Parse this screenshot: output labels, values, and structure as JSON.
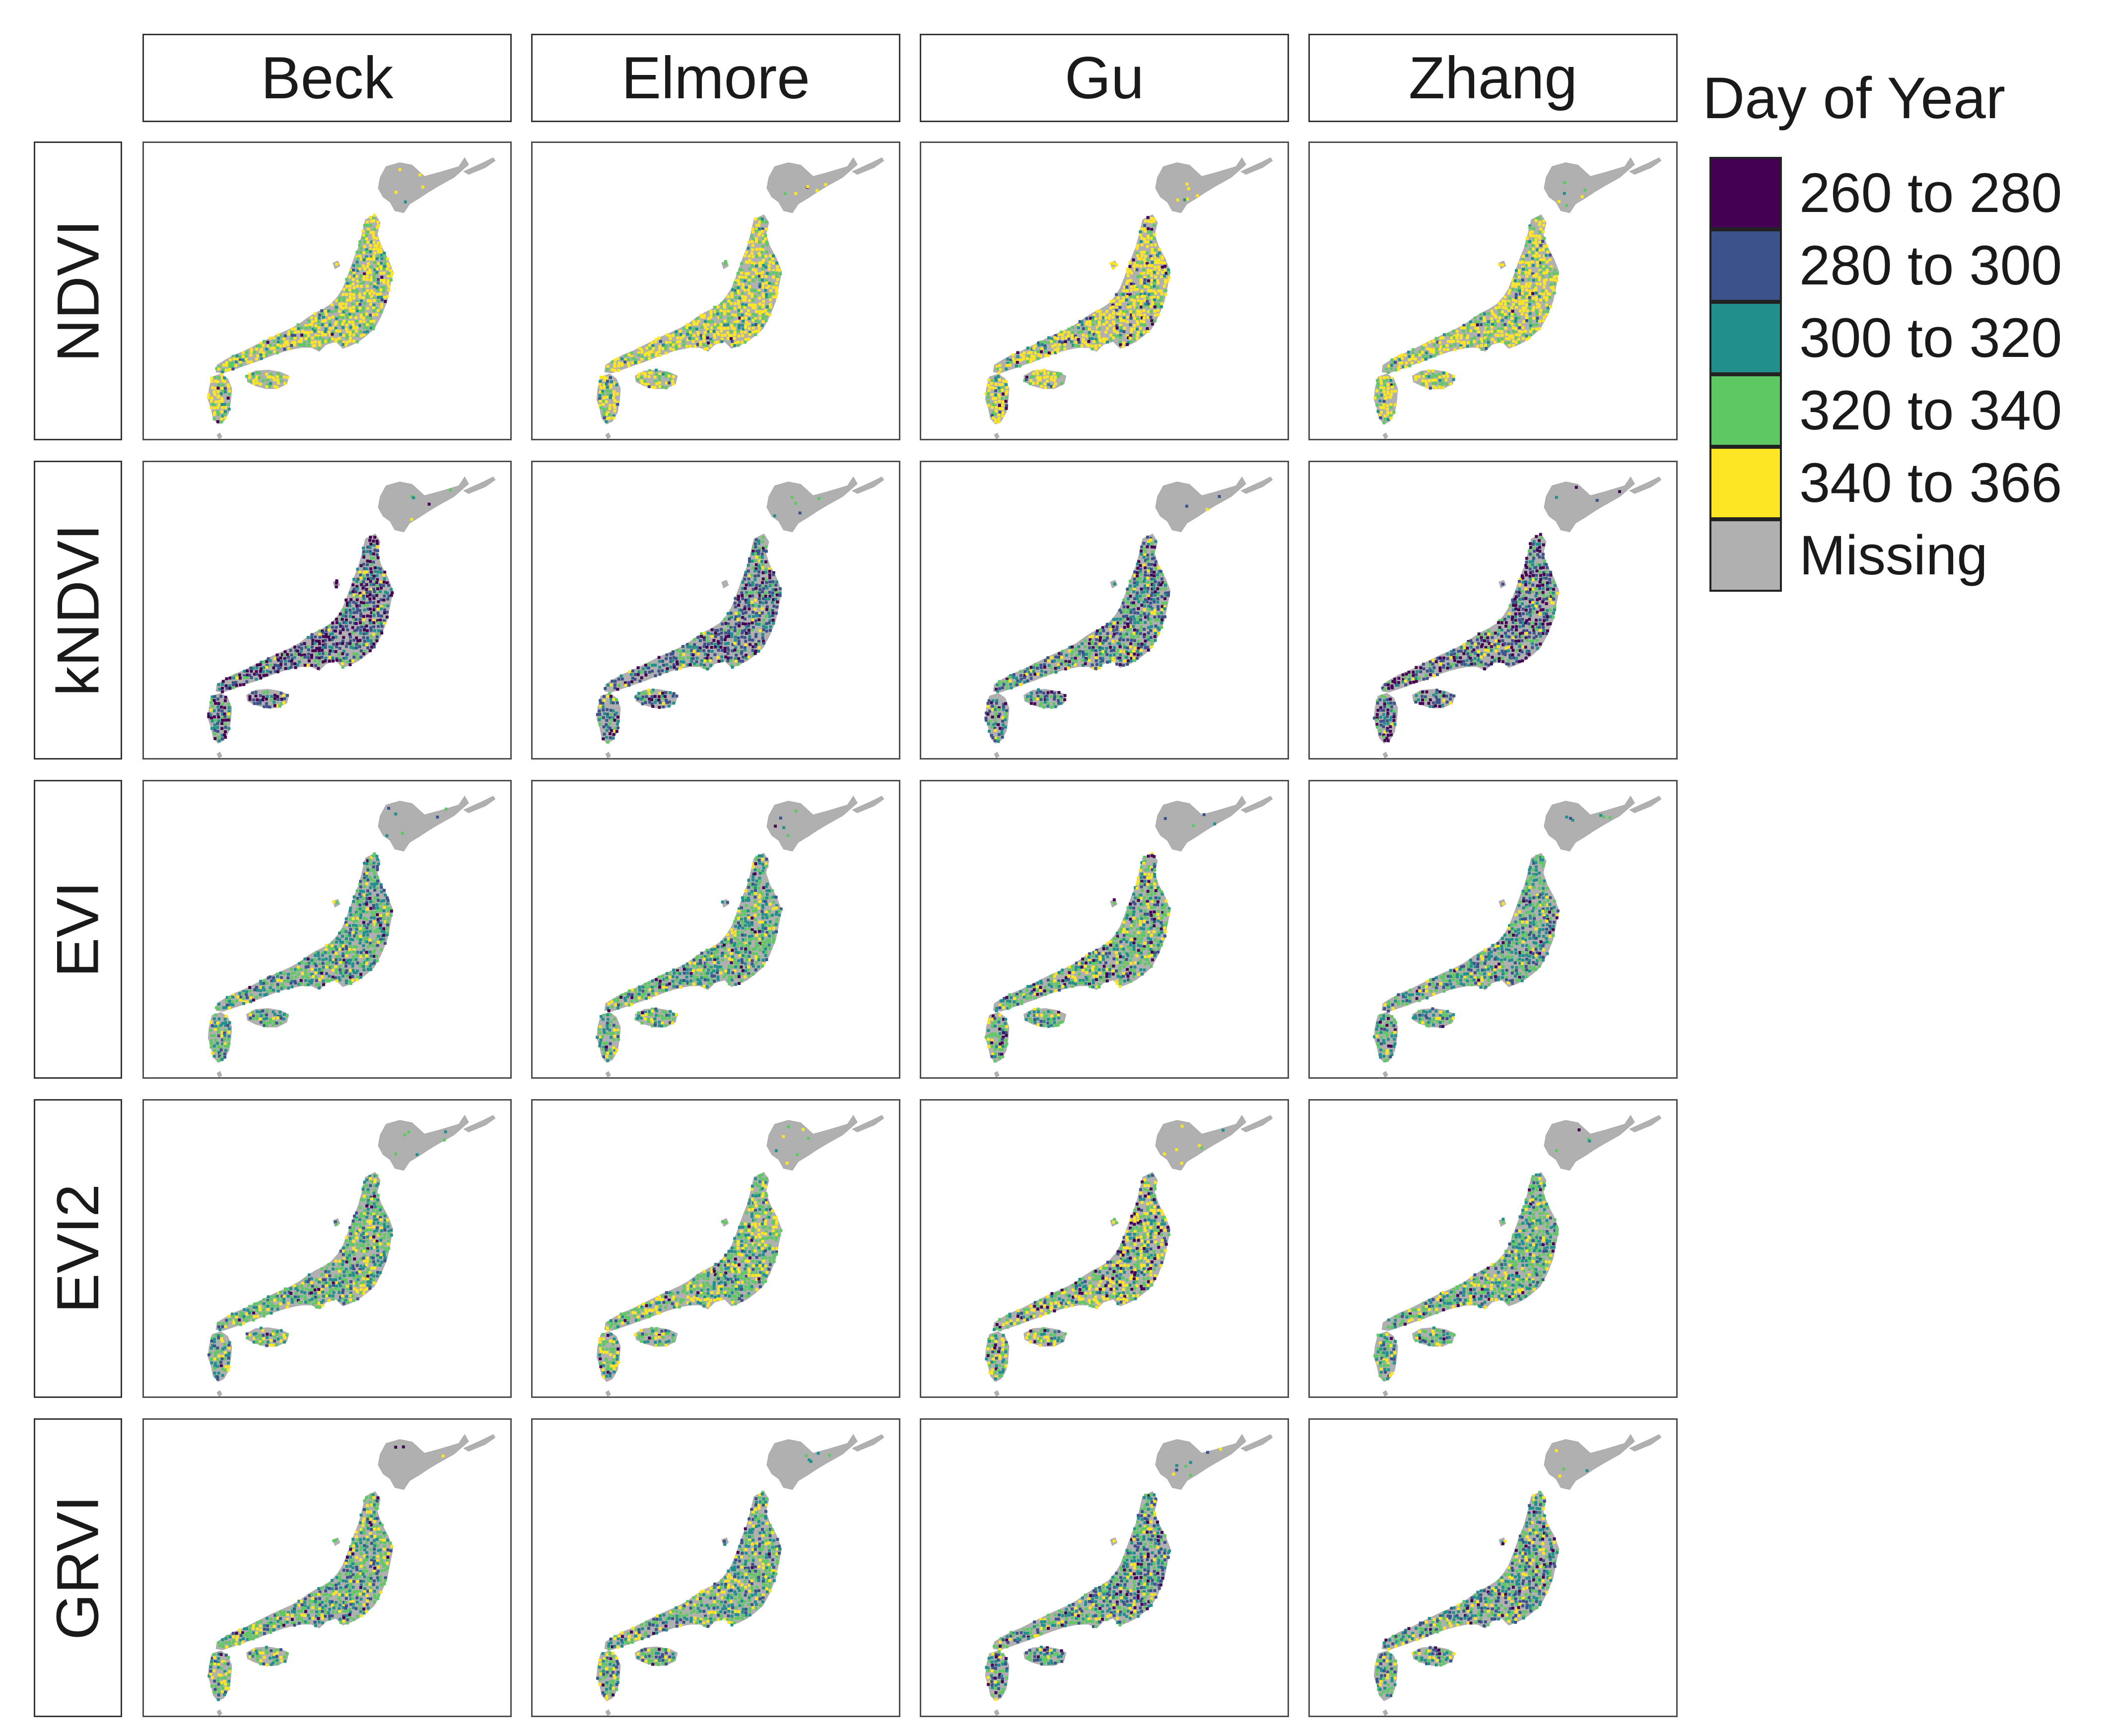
{
  "chart_data": {
    "type": "faceted-map",
    "region": "Japan",
    "columns": [
      "Beck",
      "Elmore",
      "Gu",
      "Zhang"
    ],
    "rows": [
      "NDVI",
      "kNDVI",
      "EVI",
      "EVI2",
      "GRVI"
    ],
    "legend": {
      "title": "Day of Year",
      "placement": "right",
      "items": [
        {
          "label": "260 to 280",
          "color": "#440154"
        },
        {
          "label": "280 to 300",
          "color": "#3b528b"
        },
        {
          "label": "300 to 320",
          "color": "#21908c"
        },
        {
          "label": "320 to 340",
          "color": "#5ec962"
        },
        {
          "label": "340 to 366",
          "color": "#fde725"
        },
        {
          "label": "Missing",
          "color": "#b0b0b0"
        }
      ]
    },
    "land_color": "#b0b0b0",
    "category_weights": {
      "NDVI": {
        "Beck": [
          0.01,
          0.03,
          0.1,
          0.28,
          0.58
        ],
        "Elmore": [
          0.01,
          0.03,
          0.1,
          0.25,
          0.61
        ],
        "Gu": [
          0.05,
          0.05,
          0.1,
          0.2,
          0.6
        ],
        "Zhang": [
          0.01,
          0.03,
          0.1,
          0.3,
          0.56
        ]
      },
      "kNDVI": {
        "Beck": [
          0.35,
          0.3,
          0.17,
          0.12,
          0.06
        ],
        "Elmore": [
          0.18,
          0.37,
          0.22,
          0.15,
          0.08
        ],
        "Gu": [
          0.15,
          0.3,
          0.22,
          0.2,
          0.13
        ],
        "Zhang": [
          0.33,
          0.32,
          0.17,
          0.12,
          0.06
        ]
      },
      "EVI": {
        "Beck": [
          0.04,
          0.16,
          0.37,
          0.33,
          0.1
        ],
        "Elmore": [
          0.04,
          0.12,
          0.3,
          0.38,
          0.16
        ],
        "Gu": [
          0.1,
          0.1,
          0.25,
          0.35,
          0.2
        ],
        "Zhang": [
          0.04,
          0.17,
          0.38,
          0.31,
          0.1
        ]
      },
      "EVI2": {
        "Beck": [
          0.04,
          0.1,
          0.3,
          0.38,
          0.18
        ],
        "Elmore": [
          0.03,
          0.07,
          0.22,
          0.4,
          0.28
        ],
        "Gu": [
          0.15,
          0.07,
          0.15,
          0.3,
          0.33
        ],
        "Zhang": [
          0.04,
          0.12,
          0.32,
          0.36,
          0.16
        ]
      },
      "GRVI": {
        "Beck": [
          0.04,
          0.15,
          0.25,
          0.35,
          0.21
        ],
        "Elmore": [
          0.03,
          0.18,
          0.27,
          0.32,
          0.2
        ],
        "Gu": [
          0.1,
          0.25,
          0.27,
          0.25,
          0.13
        ],
        "Zhang": [
          0.05,
          0.2,
          0.27,
          0.3,
          0.18
        ]
      }
    }
  }
}
